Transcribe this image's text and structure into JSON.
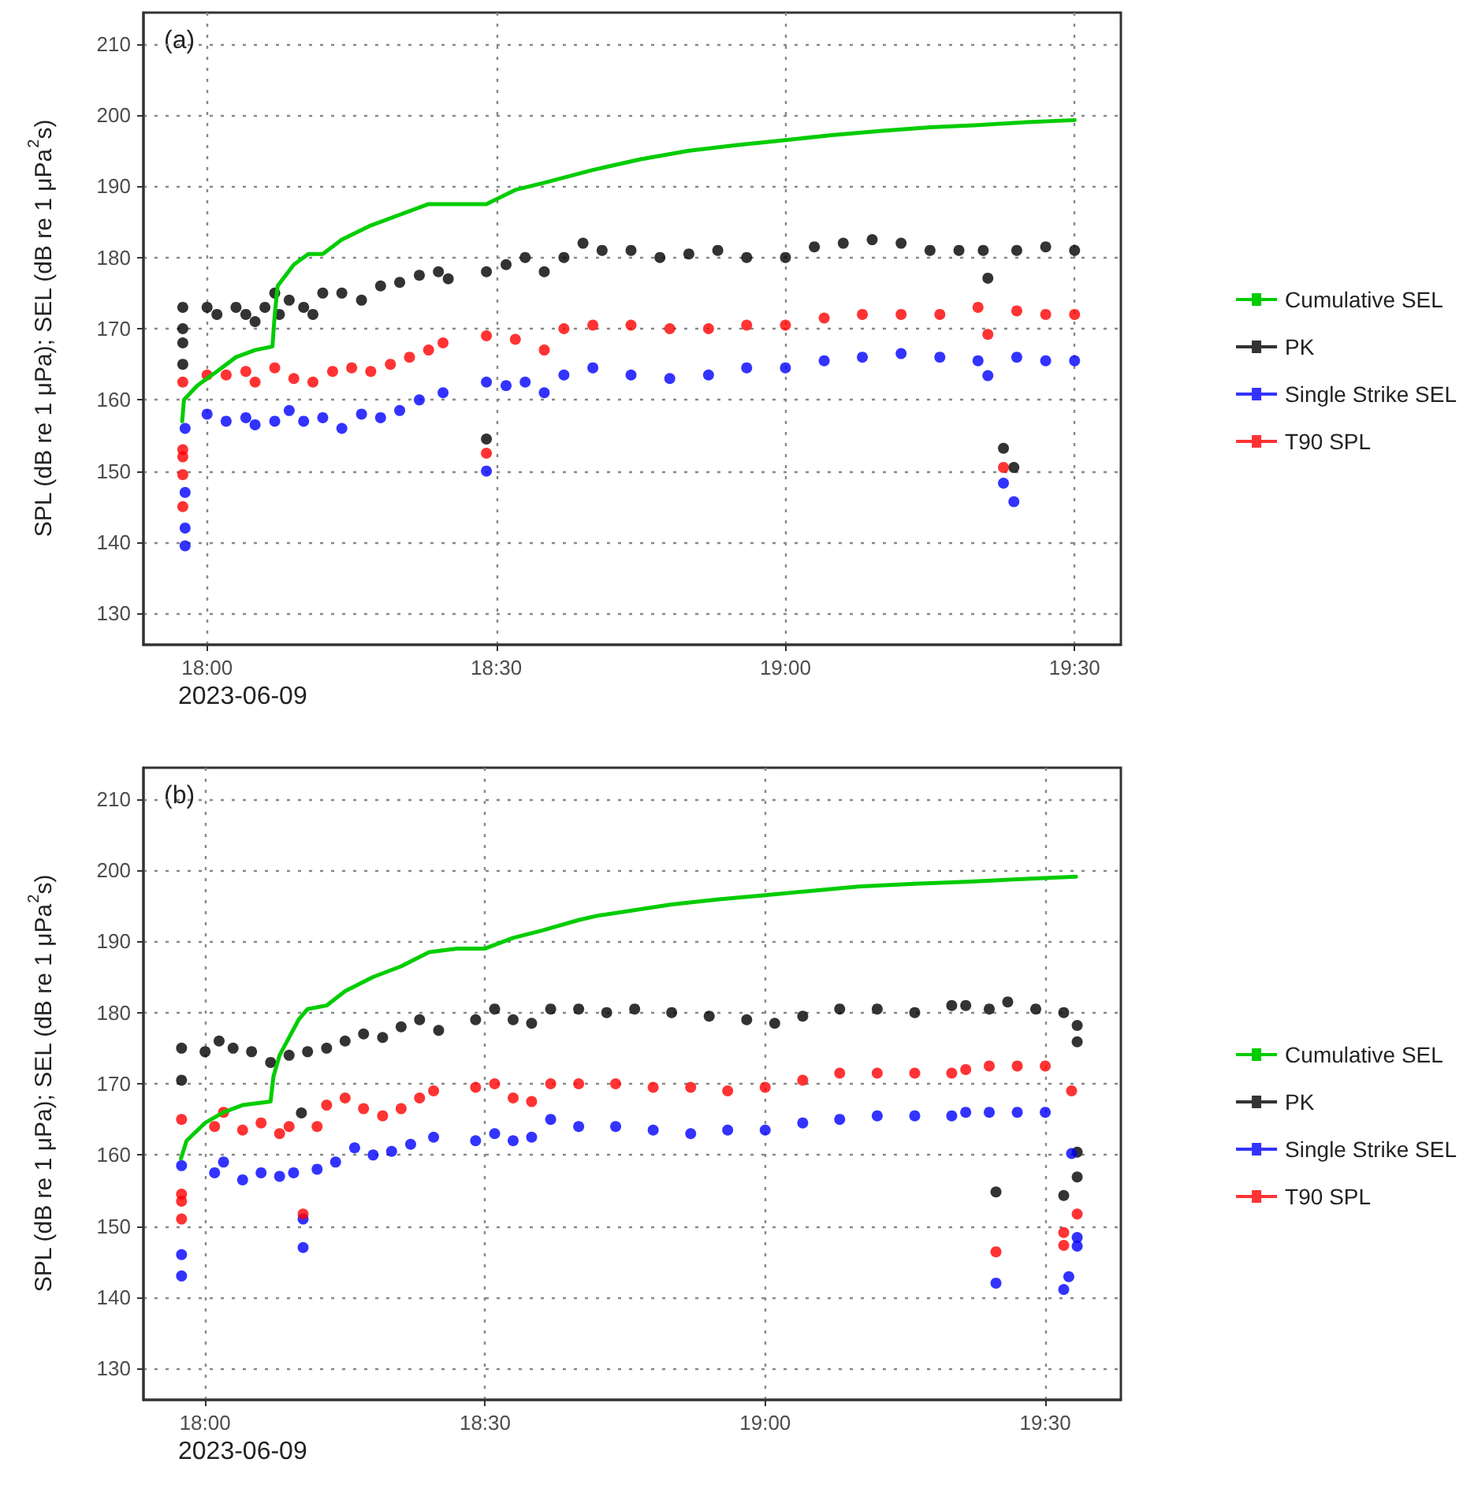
{
  "chart_data": [
    {
      "type": "scatter",
      "ylabel": "SPL (dB re 1 μPa); SEL (dB re 1 μPa$^{2}$s)",
      "annotations": [
        "(a)",
        "2023-06-09"
      ],
      "xlim": [
        17.89,
        19.58
      ],
      "xticks": [
        {
          "value": 18,
          "label": "18:00"
        },
        {
          "value": 18.5,
          "label": "18:30"
        },
        {
          "value": 19,
          "label": "19:00"
        },
        {
          "value": 19.5,
          "label": "19:30"
        }
      ],
      "ylim": [
        125.6,
        214.4
      ],
      "yticks": [
        130,
        140,
        150,
        160,
        170,
        180,
        190,
        200,
        210
      ],
      "grid": true,
      "legend": "right",
      "marker": "circle",
      "series": [
        {
          "name": "Cumulative SEL",
          "type": "line",
          "color": "#00cc00",
          "marker": "none",
          "line_style": "solid",
          "x": [
            17.957,
            17.96,
            17.983,
            18.017,
            18.05,
            18.083,
            18.113,
            18.117,
            18.122,
            18.15,
            18.175,
            18.2,
            18.233,
            18.283,
            18.333,
            18.383,
            18.433,
            18.483,
            18.533,
            18.583,
            18.667,
            18.75,
            18.833,
            18.917,
            19,
            19.083,
            19.167,
            19.25,
            19.333,
            19.417,
            19.5
          ],
          "values": [
            157,
            160,
            162,
            164,
            166,
            167,
            167.5,
            172,
            176,
            179,
            180.5,
            180.5,
            182.5,
            184.5,
            186,
            187.5,
            187.5,
            187.5,
            189.5,
            190.5,
            192.3,
            193.8,
            195,
            195.8,
            196.5,
            197.2,
            197.8,
            198.3,
            198.6,
            199,
            199.3
          ]
        },
        {
          "name": "PK",
          "color": "#000000",
          "x": [
            17.958,
            17.958,
            17.958,
            17.958,
            18,
            18.017,
            18.05,
            18.067,
            18.083,
            18.1,
            18.117,
            18.125,
            18.142,
            18.167,
            18.183,
            18.2,
            18.233,
            18.267,
            18.3,
            18.333,
            18.367,
            18.4,
            18.417,
            18.483,
            18.483,
            18.517,
            18.55,
            18.583,
            18.617,
            18.65,
            18.683,
            18.733,
            18.783,
            18.833,
            18.883,
            18.933,
            19,
            19.05,
            19.1,
            19.15,
            19.2,
            19.25,
            19.3,
            19.342,
            19.35,
            19.377,
            19.395,
            19.4,
            19.45,
            19.5
          ],
          "values": [
            173,
            170,
            168,
            165,
            173,
            172,
            173,
            172,
            171,
            173,
            175,
            172,
            174,
            173,
            172,
            175,
            175,
            174,
            176,
            176.5,
            177.5,
            178,
            177,
            154.5,
            178,
            179,
            180,
            178,
            180,
            182,
            181,
            181,
            180,
            180.5,
            181,
            180,
            180,
            181.5,
            182,
            182.5,
            182,
            181,
            181,
            181,
            177.1,
            153.2,
            150.5,
            181,
            181.5,
            181
          ]
        },
        {
          "name": "Single Strike SEL",
          "color": "#0000ff",
          "x": [
            17.962,
            17.962,
            17.962,
            17.962,
            18,
            18.033,
            18.067,
            18.083,
            18.117,
            18.142,
            18.167,
            18.2,
            18.233,
            18.267,
            18.3,
            18.333,
            18.367,
            18.408,
            18.483,
            18.483,
            18.517,
            18.55,
            18.583,
            18.617,
            18.667,
            18.733,
            18.8,
            18.867,
            18.933,
            19,
            19.067,
            19.133,
            19.2,
            19.267,
            19.333,
            19.35,
            19.377,
            19.395,
            19.4,
            19.45,
            19.5
          ],
          "values": [
            156,
            147,
            142,
            139.5,
            158,
            157,
            157.5,
            156.5,
            157,
            158.5,
            157,
            157.5,
            156,
            158,
            157.5,
            158.5,
            160,
            161,
            150,
            162.5,
            162,
            162.5,
            161,
            163.5,
            164.5,
            163.5,
            163,
            163.5,
            164.5,
            164.5,
            165.5,
            166,
            166.5,
            166,
            165.5,
            163.4,
            148.3,
            145.7,
            166,
            165.5,
            165.5
          ]
        },
        {
          "name": "T90 SPL",
          "color": "#ff0000",
          "x": [
            17.958,
            17.958,
            17.958,
            17.958,
            17.958,
            18,
            18.033,
            18.067,
            18.083,
            18.117,
            18.15,
            18.183,
            18.217,
            18.25,
            18.283,
            18.317,
            18.35,
            18.383,
            18.408,
            18.483,
            18.483,
            18.533,
            18.583,
            18.617,
            18.667,
            18.733,
            18.8,
            18.867,
            18.933,
            19,
            19.067,
            19.133,
            19.2,
            19.267,
            19.333,
            19.35,
            19.377,
            19.4,
            19.45,
            19.5
          ],
          "values": [
            162.5,
            153,
            152,
            149.5,
            145,
            163.5,
            163.5,
            164,
            162.5,
            164.5,
            163,
            162.5,
            164,
            164.5,
            164,
            165,
            166,
            167,
            168,
            152.5,
            169,
            168.5,
            167,
            170,
            170.5,
            170.5,
            170,
            170,
            170.5,
            170.5,
            171.5,
            172,
            172,
            172,
            173,
            169.2,
            150.5,
            172.5,
            172,
            172
          ]
        }
      ]
    },
    {
      "type": "scatter",
      "ylabel": "SPL (dB re 1 μPa); SEL (dB re 1 μPa$^{2}$s)",
      "annotations": [
        "(b)",
        "2023-06-09"
      ],
      "xlim": [
        17.89,
        19.635
      ],
      "xticks": [
        {
          "value": 18,
          "label": "18:00"
        },
        {
          "value": 18.5,
          "label": "18:30"
        },
        {
          "value": 19,
          "label": "19:00"
        },
        {
          "value": 19.5,
          "label": "19:30"
        }
      ],
      "ylim": [
        125.6,
        214.4
      ],
      "yticks": [
        130,
        140,
        150,
        160,
        170,
        180,
        190,
        200,
        210
      ],
      "grid": true,
      "legend": "right",
      "marker": "circle",
      "series": [
        {
          "name": "Cumulative SEL",
          "type": "line",
          "color": "#00cc00",
          "marker": "none",
          "line_style": "solid",
          "x": [
            17.957,
            17.967,
            18,
            18.033,
            18.067,
            18.117,
            18.122,
            18.133,
            18.167,
            18.183,
            18.217,
            18.25,
            18.3,
            18.35,
            18.4,
            18.45,
            18.5,
            18.55,
            18.6,
            18.667,
            18.7,
            18.833,
            18.917,
            19,
            19.083,
            19.167,
            19.267,
            19.367,
            19.467,
            19.555
          ],
          "values": [
            159.5,
            162,
            164.5,
            166,
            167,
            167.5,
            171,
            174,
            179,
            180.5,
            181,
            183,
            185,
            186.5,
            188.5,
            189,
            189,
            190.5,
            191.5,
            193,
            193.6,
            195.2,
            195.9,
            196.5,
            197.1,
            197.7,
            198.1,
            198.4,
            198.8,
            199.1
          ]
        },
        {
          "name": "PK",
          "color": "#000000",
          "x": [
            17.958,
            17.958,
            18,
            18.025,
            18.05,
            18.083,
            18.117,
            18.15,
            18.172,
            18.183,
            18.217,
            18.25,
            18.283,
            18.317,
            18.35,
            18.383,
            18.417,
            18.483,
            18.517,
            18.55,
            18.583,
            18.617,
            18.667,
            18.717,
            18.767,
            18.833,
            18.9,
            18.967,
            19.017,
            19.067,
            19.133,
            19.2,
            19.267,
            19.333,
            19.358,
            19.4,
            19.412,
            19.433,
            19.483,
            19.533,
            19.557,
            19.557,
            19.557,
            19.557,
            19.533
          ],
          "values": [
            175,
            170.5,
            174.5,
            176,
            175,
            174.5,
            173,
            174,
            165.9,
            174.5,
            175,
            176,
            177,
            176.5,
            178,
            179,
            177.5,
            179,
            180.5,
            179,
            178.5,
            180.5,
            180.5,
            180,
            180.5,
            180,
            179.5,
            179,
            178.5,
            179.5,
            180.5,
            180.5,
            180,
            181,
            181,
            180.5,
            154.8,
            181.5,
            180.5,
            180,
            178.2,
            175.9,
            160.4,
            156.9,
            154.3
          ]
        },
        {
          "name": "Single Strike SEL",
          "color": "#0000ff",
          "x": [
            17.958,
            17.958,
            17.958,
            18.017,
            18.033,
            18.067,
            18.1,
            18.133,
            18.158,
            18.175,
            18.175,
            18.2,
            18.233,
            18.267,
            18.3,
            18.333,
            18.367,
            18.408,
            18.483,
            18.517,
            18.55,
            18.583,
            18.617,
            18.667,
            18.733,
            18.8,
            18.867,
            18.933,
            19,
            19.067,
            19.133,
            19.2,
            19.267,
            19.333,
            19.358,
            19.4,
            19.412,
            19.45,
            19.5,
            19.547,
            19.557,
            19.557,
            19.542,
            19.533
          ],
          "values": [
            158.5,
            146,
            143,
            157.5,
            159,
            156.5,
            157.5,
            157,
            157.5,
            151,
            147,
            158,
            159,
            161,
            160,
            160.5,
            161.5,
            162.5,
            162,
            163,
            162,
            162.5,
            165,
            164,
            164,
            163.5,
            163,
            163.5,
            163.5,
            164.5,
            165,
            165.5,
            165.5,
            165.5,
            166,
            166,
            142,
            166,
            166,
            160.2,
            148.4,
            147.2,
            142.9,
            141.1
          ]
        },
        {
          "name": "T90 SPL",
          "color": "#ff0000",
          "x": [
            17.958,
            17.958,
            17.958,
            17.958,
            18.017,
            18.033,
            18.067,
            18.1,
            18.133,
            18.15,
            18.175,
            18.2,
            18.217,
            18.25,
            18.283,
            18.317,
            18.35,
            18.383,
            18.408,
            18.483,
            18.517,
            18.55,
            18.583,
            18.617,
            18.667,
            18.733,
            18.8,
            18.867,
            18.933,
            19,
            19.067,
            19.133,
            19.2,
            19.267,
            19.333,
            19.358,
            19.4,
            19.412,
            19.45,
            19.5,
            19.547,
            19.557,
            19.533,
            19.533
          ],
          "values": [
            165,
            154.5,
            153.5,
            151,
            164,
            166,
            163.5,
            164.5,
            163,
            164,
            151.7,
            164,
            167,
            168,
            166.5,
            165.5,
            166.5,
            168,
            169,
            169.5,
            170,
            168,
            167.5,
            170,
            170,
            170,
            169.5,
            169.5,
            169,
            169.5,
            170.5,
            171.5,
            171.5,
            171.5,
            171.5,
            172,
            172.5,
            146.4,
            172.5,
            172.5,
            169,
            151.7,
            149.1,
            147.3
          ]
        }
      ]
    }
  ]
}
